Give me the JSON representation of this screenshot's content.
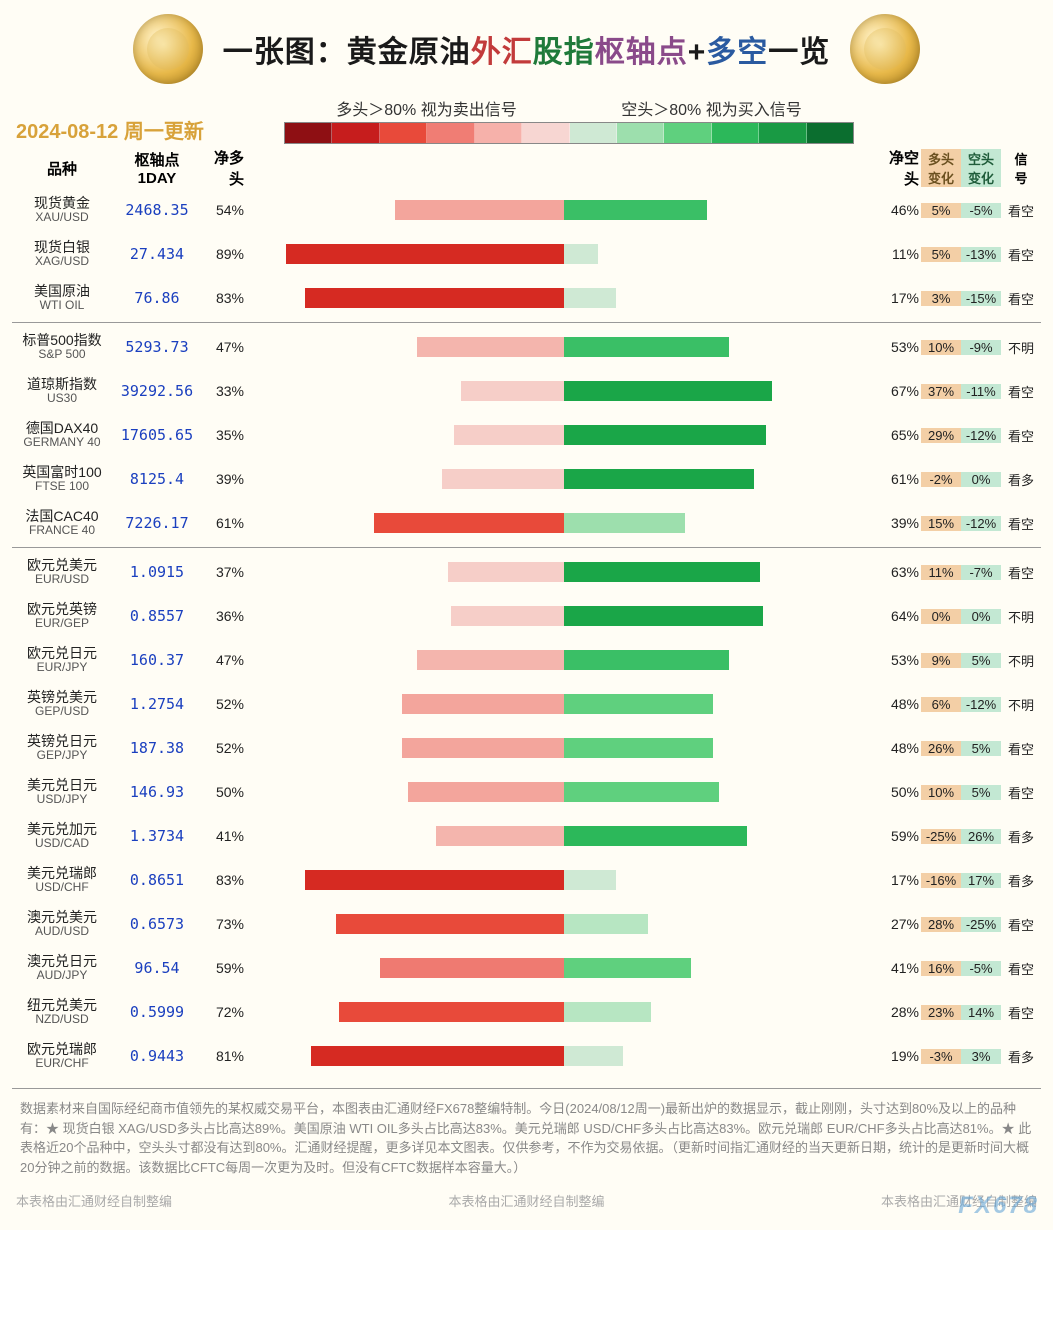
{
  "title_parts": [
    {
      "text": "一张图：",
      "cls": "c-black"
    },
    {
      "text": "黄金原油",
      "cls": "c-black"
    },
    {
      "text": "外汇",
      "cls": "c-red"
    },
    {
      "text": "股指",
      "cls": "c-green"
    },
    {
      "text": "枢轴点",
      "cls": "c-purple"
    },
    {
      "text": "+",
      "cls": "c-black"
    },
    {
      "text": "多空",
      "cls": "c-blue"
    },
    {
      "text": "一览",
      "cls": "c-black"
    }
  ],
  "date_line": "2024-08-12 周一更新",
  "legend_left": "多头＞80% 视为卖出信号",
  "legend_right": "空头＞80% 视为买入信号",
  "gradient_colors": [
    "#8e0f13",
    "#c61d1d",
    "#e84a3a",
    "#f07d74",
    "#f6b1aa",
    "#f7d6d2",
    "#cfe9d4",
    "#9ddfad",
    "#5fd07e",
    "#2cb85a",
    "#199a44",
    "#0b6e2f"
  ],
  "headers": {
    "name": "品种",
    "pivot": "枢轴点\n1DAY",
    "long": "净多\n头",
    "short": "净空\n头",
    "chL": "多头\n变化",
    "chS": "空头\n变化",
    "sig": "信\n号"
  },
  "groups": [
    {
      "rows": [
        {
          "cn": "现货黄金",
          "en": "XAU/USD",
          "pivot": "2468.35",
          "long": 54,
          "short": 46,
          "chL": "5%",
          "chS": "-5%",
          "sig": "看空",
          "lcol": "#f3a59c",
          "scol": "#3abf66"
        },
        {
          "cn": "现货白银",
          "en": "XAG/USD",
          "pivot": "27.434",
          "long": 89,
          "short": 11,
          "chL": "5%",
          "chS": "-13%",
          "sig": "看空",
          "lcol": "#d62a22",
          "scol": "#cfe9d4"
        },
        {
          "cn": "美国原油",
          "en": "WTI OIL",
          "pivot": "76.86",
          "long": 83,
          "short": 17,
          "chL": "3%",
          "chS": "-15%",
          "sig": "看空",
          "lcol": "#d62a22",
          "scol": "#cfe9d4"
        }
      ]
    },
    {
      "rows": [
        {
          "cn": "标普500指数",
          "en": "S&P 500",
          "pivot": "5293.73",
          "long": 47,
          "short": 53,
          "chL": "10%",
          "chS": "-9%",
          "sig": "不明",
          "lcol": "#f4b5ad",
          "scol": "#3abf66"
        },
        {
          "cn": "道琼斯指数",
          "en": "US30",
          "pivot": "39292.56",
          "long": 33,
          "short": 67,
          "chL": "37%",
          "chS": "-11%",
          "sig": "看空",
          "lcol": "#f6cec8",
          "scol": "#1aa648"
        },
        {
          "cn": "德国DAX40",
          "en": "GERMANY 40",
          "pivot": "17605.65",
          "long": 35,
          "short": 65,
          "chL": "29%",
          "chS": "-12%",
          "sig": "看空",
          "lcol": "#f6cec8",
          "scol": "#1aa648"
        },
        {
          "cn": "英国富时100",
          "en": "FTSE 100",
          "pivot": "8125.4",
          "long": 39,
          "short": 61,
          "chL": "-2%",
          "chS": "0%",
          "sig": "看多",
          "lcol": "#f6cec8",
          "scol": "#1aa648"
        },
        {
          "cn": "法国CAC40",
          "en": "FRANCE 40",
          "pivot": "7226.17",
          "long": 61,
          "short": 39,
          "chL": "15%",
          "chS": "-12%",
          "sig": "看空",
          "lcol": "#e84a3a",
          "scol": "#9ddfad"
        }
      ]
    },
    {
      "rows": [
        {
          "cn": "欧元兑美元",
          "en": "EUR/USD",
          "pivot": "1.0915",
          "long": 37,
          "short": 63,
          "chL": "11%",
          "chS": "-7%",
          "sig": "看空",
          "lcol": "#f6cec8",
          "scol": "#1aa648"
        },
        {
          "cn": "欧元兑英镑",
          "en": "EUR/GEP",
          "pivot": "0.8557",
          "long": 36,
          "short": 64,
          "chL": "0%",
          "chS": "0%",
          "sig": "不明",
          "lcol": "#f6cec8",
          "scol": "#1aa648"
        },
        {
          "cn": "欧元兑日元",
          "en": "EUR/JPY",
          "pivot": "160.37",
          "long": 47,
          "short": 53,
          "chL": "9%",
          "chS": "5%",
          "sig": "不明",
          "lcol": "#f4b5ad",
          "scol": "#3abf66"
        },
        {
          "cn": "英镑兑美元",
          "en": "GEP/USD",
          "pivot": "1.2754",
          "long": 52,
          "short": 48,
          "chL": "6%",
          "chS": "-12%",
          "sig": "不明",
          "lcol": "#f3a59c",
          "scol": "#5fd07e"
        },
        {
          "cn": "英镑兑日元",
          "en": "GEP/JPY",
          "pivot": "187.38",
          "long": 52,
          "short": 48,
          "chL": "26%",
          "chS": "5%",
          "sig": "看空",
          "lcol": "#f3a59c",
          "scol": "#5fd07e"
        },
        {
          "cn": "美元兑日元",
          "en": "USD/JPY",
          "pivot": "146.93",
          "long": 50,
          "short": 50,
          "chL": "10%",
          "chS": "5%",
          "sig": "看空",
          "lcol": "#f3a59c",
          "scol": "#5fd07e"
        },
        {
          "cn": "美元兑加元",
          "en": "USD/CAD",
          "pivot": "1.3734",
          "long": 41,
          "short": 59,
          "chL": "-25%",
          "chS": "26%",
          "sig": "看多",
          "lcol": "#f4b5ad",
          "scol": "#2cb85a"
        },
        {
          "cn": "美元兑瑞郎",
          "en": "USD/CHF",
          "pivot": "0.8651",
          "long": 83,
          "short": 17,
          "chL": "-16%",
          "chS": "17%",
          "sig": "看多",
          "lcol": "#d62a22",
          "scol": "#cfe9d4"
        },
        {
          "cn": "澳元兑美元",
          "en": "AUD/USD",
          "pivot": "0.6573",
          "long": 73,
          "short": 27,
          "chL": "28%",
          "chS": "-25%",
          "sig": "看空",
          "lcol": "#e84a3a",
          "scol": "#b7e6c2"
        },
        {
          "cn": "澳元兑日元",
          "en": "AUD/JPY",
          "pivot": "96.54",
          "long": 59,
          "short": 41,
          "chL": "16%",
          "chS": "-5%",
          "sig": "看空",
          "lcol": "#ef7a71",
          "scol": "#5fd07e"
        },
        {
          "cn": "纽元兑美元",
          "en": "NZD/USD",
          "pivot": "0.5999",
          "long": 72,
          "short": 28,
          "chL": "23%",
          "chS": "14%",
          "sig": "看空",
          "lcol": "#e84a3a",
          "scol": "#b7e6c2"
        },
        {
          "cn": "欧元兑瑞郎",
          "en": "EUR/CHF",
          "pivot": "0.9443",
          "long": 81,
          "short": 19,
          "chL": "-3%",
          "chS": "3%",
          "sig": "看多",
          "lcol": "#d62a22",
          "scol": "#cfe9d4"
        }
      ]
    }
  ],
  "bar_scale_pct": 50,
  "colors": {
    "chL_bg": "#f3cfa6",
    "chS_bg": "#c3e8d3",
    "pivot_text": "#1a3fbf",
    "date_text": "#d8a23a"
  },
  "footer_text": "数据素材来自国际经纪商市值领先的某权威交易平台，本图表由汇通财经FX678整编特制。今日(2024/08/12周一)最新出炉的数据显示，截止刚刚，头寸达到80%及以上的品种有：★ 现货白银 XAG/USD多头占比高达89%。美国原油 WTI OIL多头占比高达83%。美元兑瑞郎 USD/CHF多头占比高达83%。欧元兑瑞郎 EUR/CHF多头占比高达81%。★ 此表格近20个品种中，空头头寸都没有达到80%。汇通财经提醒，更多详见本文图表。仅供参考，不作为交易依据。（更新时间指汇通财经的当天更新日期，统计的是更新时间大概20分钟之前的数据。该数据比CFTC每周一次更为及时。但没有CFTC数据样本容量大。）",
  "credit_text": "本表格由汇通财经自制整编",
  "watermark": "FX678"
}
